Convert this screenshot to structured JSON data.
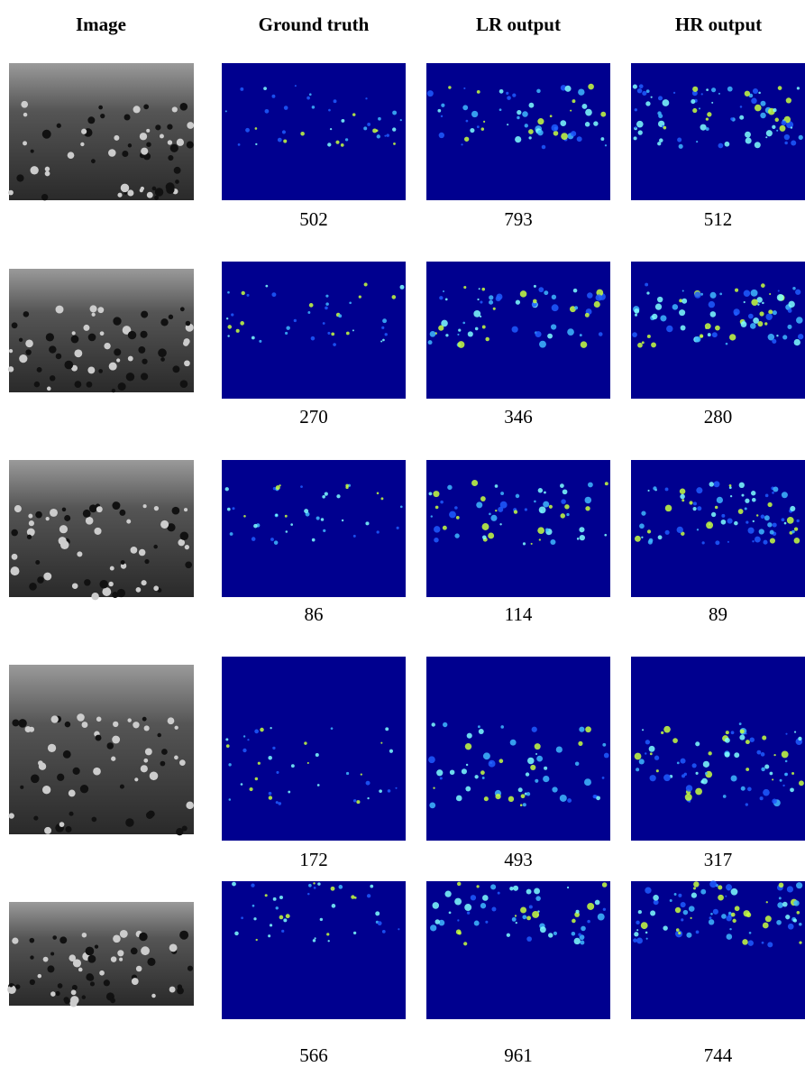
{
  "header": {
    "columns": [
      "Image",
      "Ground truth",
      "LR output",
      "HR output"
    ]
  },
  "rows": [
    {
      "ground_truth": 502,
      "lr_output": 793,
      "hr_output": 512
    },
    {
      "ground_truth": 270,
      "lr_output": 346,
      "hr_output": 280
    },
    {
      "ground_truth": 86,
      "lr_output": 114,
      "hr_output": 89
    },
    {
      "ground_truth": 172,
      "lr_output": 493,
      "hr_output": 317
    },
    {
      "ground_truth": 566,
      "lr_output": 961,
      "hr_output": 744
    }
  ]
}
